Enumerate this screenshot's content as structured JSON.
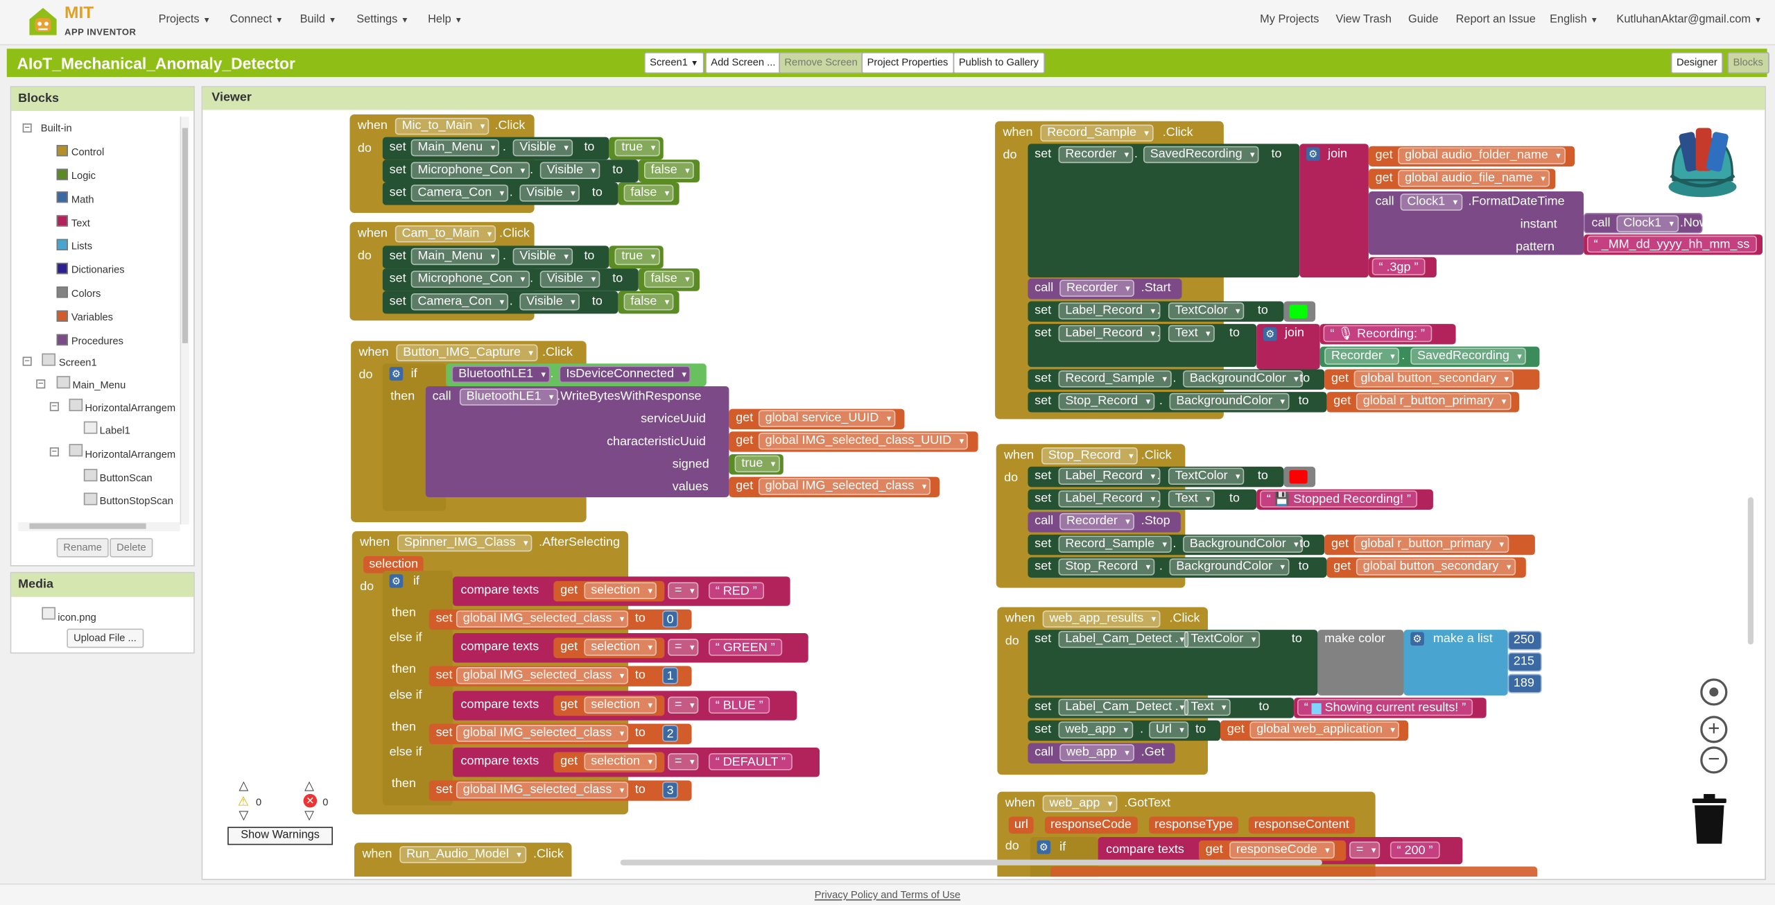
{
  "app": {
    "logo_mit": "MIT",
    "logo_sub": "APP INVENTOR"
  },
  "nav": {
    "projects": "Projects",
    "connect": "Connect",
    "build": "Build",
    "settings": "Settings",
    "help": "Help",
    "my_projects": "My Projects",
    "view_trash": "View Trash",
    "guide": "Guide",
    "report": "Report an Issue",
    "language": "English",
    "user": "KutluhanAktar@gmail.com"
  },
  "project": {
    "name": "AIoT_Mechanical_Anomaly_Detector",
    "screen": "Screen1",
    "add_screen": "Add Screen ...",
    "remove_screen": "Remove Screen",
    "properties": "Project Properties",
    "publish": "Publish to Gallery",
    "designer": "Designer",
    "blocks": "Blocks"
  },
  "blocks_panel": {
    "title": "Blocks",
    "builtin": "Built-in",
    "items": [
      "Control",
      "Logic",
      "Math",
      "Text",
      "Lists",
      "Dictionaries",
      "Colors",
      "Variables",
      "Procedures"
    ],
    "colors": [
      "#b29027",
      "#5b8c23",
      "#3a69a3",
      "#b2235b",
      "#49a5cf",
      "#2c1f8f",
      "#828282",
      "#d35d2a",
      "#7b4a87"
    ],
    "screen": "Screen1",
    "main_menu": "Main_Menu",
    "ha1": "HorizontalArrangem",
    "label1": "Label1",
    "ha2": "HorizontalArrangem",
    "btn_scan": "ButtonScan",
    "btn_stop_scan": "ButtonStopScan",
    "rename": "Rename",
    "delete": "Delete"
  },
  "media": {
    "title": "Media",
    "file": "icon.png",
    "upload": "Upload File ..."
  },
  "viewer": {
    "title": "Viewer",
    "warn_count": "0",
    "err_count": "0",
    "show_warnings": "Show Warnings"
  },
  "footer": {
    "policy": "Privacy Policy and Terms of Use"
  },
  "b": {
    "when": "when",
    "do": "do",
    "set": "set",
    "to": "to",
    "call": "call",
    "get": "get",
    "if": "if",
    "then": "then",
    "elseif": "else if",
    "dot": ".",
    "click": ".Click",
    "true": "true",
    "false": "false",
    "visible": "Visible",
    "mic_to_main": "Mic_to_Main",
    "cam_to_main": "Cam_to_Main",
    "main_menu": "Main_Menu",
    "mic_con": "Microphone_Con",
    "cam_con": "Camera_Con",
    "btn_img_capture": "Button_IMG_Capture",
    "ble": "BluetoothLE1",
    "is_connected": "IsDeviceConnected",
    "write_bytes": ".WriteBytesWithResponse",
    "serviceUuid": "serviceUuid",
    "characteristicUuid": "characteristicUuid",
    "signed": "signed",
    "values": "values",
    "g_service": "global service_UUID",
    "g_img_class_uuid": "global IMG_selected_class_UUID",
    "g_img_class": "global IMG_selected_class",
    "spinner": "Spinner_IMG_Class",
    "after_selecting": ".AfterSelecting",
    "selection": "selection",
    "compare": "compare texts",
    "eq": "=",
    "red": "RED",
    "green": "GREEN",
    "blue": "BLUE",
    "default": "DEFAULT",
    "n0": "0",
    "n1": "1",
    "n2": "2",
    "n3": "3",
    "run_audio": "Run_Audio_Model",
    "record_sample": "Record_Sample",
    "recorder": "Recorder",
    "saved_recording": "SavedRecording",
    "join": "join",
    "g_audio_folder": "global audio_folder_name",
    "g_audio_file": "global audio_file_name",
    "clock1": "Clock1",
    "format_dt": ".FormatDateTime",
    "instant": "instant",
    "now": ".Now",
    "pattern": "pattern",
    "pattern_val": "_MM_dd_yyyy_hh_mm_ss",
    "ext": ".3gp",
    "start": ".Start",
    "label_record": "Label_Record",
    "text_color": "TextColor",
    "text_prop": "Text",
    "recording": "🎙 Recording:",
    "bg_color": "BackgroundColor",
    "g_btn_secondary": "global button_secondary",
    "stop_record": "Stop_Record",
    "g_r_btn_primary": "global r_button_primary",
    "stopped": "💾 Stopped Recording!",
    "stop": ".Stop",
    "web_app_results": "web_app_results",
    "label_cam_detect": "Label_Cam_Detect",
    "make_color": "make color",
    "make_list": "make a list",
    "c250": "250",
    "c215": "215",
    "c189": "189",
    "showing": "Showing current results!",
    "web_app": "web_app",
    "url": "Url",
    "g_web_app": "global web_application",
    "get_m": ".Get",
    "got_text": ".GotText",
    "p_url": "url",
    "p_code": "responseCode",
    "p_type": "responseType",
    "p_content": "responseContent",
    "c200": "200"
  }
}
